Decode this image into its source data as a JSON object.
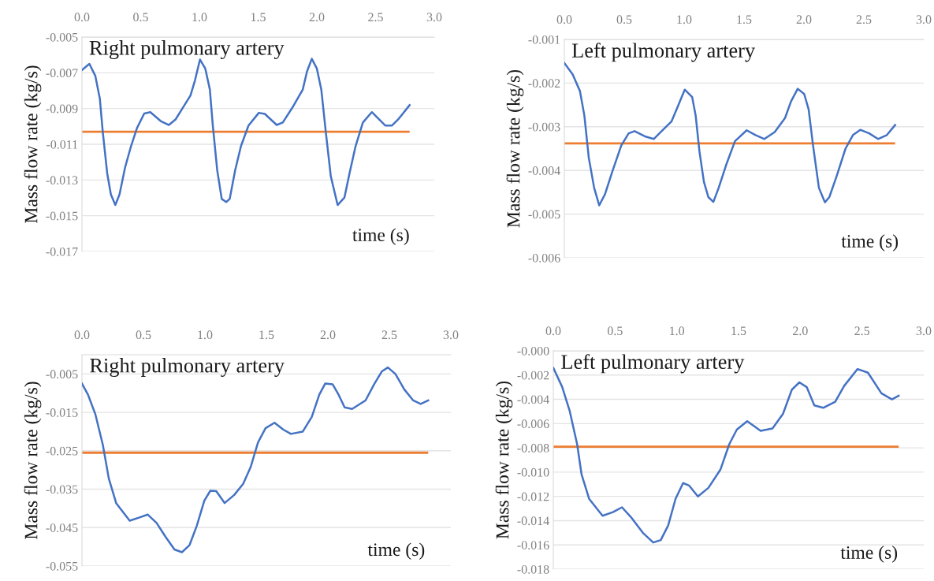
{
  "chart_data": [
    {
      "type": "line",
      "title": "Right pulmonary artery",
      "xlabel": "time (s)",
      "ylabel": "Mass flow rate (kg/s)",
      "xlim": [
        0.0,
        3.0
      ],
      "xticks": [
        {
          "value": 0,
          "label": "0.0"
        },
        0.5,
        {
          "value": 1,
          "label": "1.0"
        },
        1.5,
        {
          "value": 2,
          "label": "2.0"
        },
        2.5,
        {
          "value": 3,
          "label": "3.0"
        }
      ],
      "ylim": [
        -0.017,
        -0.005
      ],
      "yticks": [
        -0.017,
        -0.015,
        -0.013,
        -0.011,
        -0.009,
        -0.007,
        -0.005
      ],
      "grid": "y",
      "legend": false,
      "ref_lines": [
        {
          "axis": "y",
          "value": -0.0103,
          "color": "#ed7d31"
        }
      ],
      "series": [
        {
          "color": "#4472c4",
          "x": [
            0,
            0.063,
            0.114,
            0.152,
            0.177,
            0.215,
            0.246,
            0.284,
            0.32,
            0.367,
            0.418,
            0.468,
            0.53,
            0.582,
            0.67,
            0.74,
            0.797,
            0.86,
            0.924,
            0.962,
            1.005,
            1.05,
            1.089,
            1.114,
            1.152,
            1.19,
            1.228,
            1.258,
            1.304,
            1.354,
            1.418,
            1.506,
            1.557,
            1.658,
            1.71,
            1.8,
            1.88,
            1.916,
            1.957,
            2.0,
            2.038,
            2.076,
            2.119,
            2.177,
            2.235,
            2.278,
            2.33,
            2.392,
            2.468,
            2.582,
            2.64,
            2.696,
            2.79
          ],
          "values": [
            -0.00685,
            -0.0065,
            -0.00718,
            -0.00844,
            -0.0103,
            -0.01263,
            -0.0138,
            -0.0144,
            -0.0138,
            -0.0123,
            -0.0111,
            -0.0101,
            -0.00928,
            -0.0092,
            -0.0097,
            -0.00992,
            -0.00961,
            -0.00894,
            -0.00827,
            -0.00743,
            -0.00626,
            -0.00676,
            -0.00794,
            -0.00995,
            -0.01247,
            -0.01406,
            -0.01423,
            -0.01406,
            -0.01247,
            -0.0111,
            -0.00995,
            -0.00924,
            -0.0093,
            -0.00992,
            -0.00978,
            -0.00886,
            -0.00794,
            -0.00693,
            -0.00622,
            -0.00676,
            -0.00794,
            -0.0103,
            -0.0128,
            -0.0144,
            -0.01398,
            -0.01263,
            -0.0111,
            -0.00978,
            -0.0092,
            -0.00995,
            -0.00995,
            -0.00958,
            -0.00881
          ]
        }
      ]
    },
    {
      "type": "line",
      "title": "Left pulmonary artery",
      "xlabel": "time (s)",
      "ylabel": "Mass flow rate (kg/s)",
      "xlim": [
        0.0,
        3.0
      ],
      "xticks": [
        {
          "value": 0,
          "label": "0.0"
        },
        0.5,
        {
          "value": 1,
          "label": "1.0"
        },
        1.5,
        {
          "value": 2,
          "label": "2.0"
        },
        2.5,
        {
          "value": 3,
          "label": "3.0"
        }
      ],
      "ylim": [
        -0.006,
        -0.001
      ],
      "yticks": [
        -0.006,
        -0.005,
        -0.004,
        -0.003,
        -0.002,
        -0.001
      ],
      "grid": "y",
      "legend": false,
      "ref_lines": [
        {
          "axis": "y",
          "value": -0.00338,
          "color": "#ed7d31"
        }
      ],
      "series": [
        {
          "color": "#4472c4",
          "x": [
            0,
            0.069,
            0.13,
            0.167,
            0.204,
            0.249,
            0.291,
            0.34,
            0.401,
            0.475,
            0.537,
            0.586,
            0.672,
            0.746,
            0.82,
            0.894,
            0.948,
            1.005,
            1.067,
            1.096,
            1.128,
            1.165,
            1.202,
            1.244,
            1.288,
            1.35,
            1.424,
            1.522,
            1.596,
            1.67,
            1.756,
            1.842,
            1.892,
            1.948,
            2.002,
            2.039,
            2.076,
            2.125,
            2.175,
            2.212,
            2.273,
            2.347,
            2.409,
            2.47,
            2.544,
            2.618,
            2.692,
            2.761
          ],
          "values": [
            -0.00154,
            -0.0018,
            -0.00218,
            -0.00274,
            -0.00371,
            -0.0044,
            -0.0048,
            -0.00454,
            -0.00402,
            -0.00343,
            -0.00315,
            -0.0031,
            -0.00322,
            -0.00328,
            -0.00308,
            -0.00288,
            -0.00253,
            -0.00215,
            -0.00232,
            -0.00274,
            -0.00357,
            -0.00426,
            -0.00461,
            -0.00472,
            -0.0044,
            -0.00388,
            -0.00333,
            -0.00308,
            -0.00319,
            -0.00328,
            -0.00312,
            -0.0028,
            -0.00242,
            -0.00213,
            -0.00225,
            -0.0026,
            -0.00343,
            -0.0044,
            -0.00473,
            -0.00461,
            -0.00413,
            -0.0035,
            -0.00319,
            -0.00307,
            -0.00315,
            -0.00328,
            -0.00319,
            -0.00296
          ]
        }
      ]
    },
    {
      "type": "line",
      "title": "Right pulmonary artery",
      "xlabel": "time (s)",
      "ylabel": "Mass flow rate (kg/s)",
      "xlim": [
        0.0,
        3.0
      ],
      "xticks": [
        {
          "value": 0,
          "label": "0.0"
        },
        0.5,
        {
          "value": 1,
          "label": "1.0"
        },
        1.5,
        {
          "value": 2,
          "label": "2.0"
        },
        2.5,
        {
          "value": 3,
          "label": "3.0"
        }
      ],
      "ylim": [
        -0.055,
        0.0
      ],
      "yticks": [
        -0.055,
        -0.045,
        -0.035,
        -0.025,
        -0.015,
        -0.005
      ],
      "grid": "y",
      "legend": false,
      "ref_lines": [
        {
          "axis": "y",
          "value": -0.0255,
          "color": "#ed7d31"
        }
      ],
      "series": [
        {
          "color": "#4472c4",
          "x": [
            0,
            0.049,
            0.109,
            0.17,
            0.218,
            0.279,
            0.388,
            0.473,
            0.534,
            0.607,
            0.68,
            0.752,
            0.813,
            0.874,
            0.934,
            0.995,
            1.044,
            1.092,
            1.16,
            1.238,
            1.311,
            1.371,
            1.432,
            1.493,
            1.566,
            1.638,
            1.699,
            1.796,
            1.869,
            1.93,
            1.978,
            2.039,
            2.087,
            2.136,
            2.197,
            2.306,
            2.379,
            2.44,
            2.488,
            2.549,
            2.621,
            2.694,
            2.755,
            2.816
          ],
          "values": [
            -0.0075,
            -0.0104,
            -0.0155,
            -0.0235,
            -0.0322,
            -0.0387,
            -0.0432,
            -0.0423,
            -0.0416,
            -0.0438,
            -0.0474,
            -0.0507,
            -0.0514,
            -0.0496,
            -0.0445,
            -0.038,
            -0.0354,
            -0.0355,
            -0.0386,
            -0.0365,
            -0.0336,
            -0.0293,
            -0.0228,
            -0.0191,
            -0.0177,
            -0.0195,
            -0.0206,
            -0.02,
            -0.0162,
            -0.0104,
            -0.0075,
            -0.0077,
            -0.0104,
            -0.0137,
            -0.0141,
            -0.0119,
            -0.0075,
            -0.0043,
            -0.0033,
            -0.005,
            -0.009,
            -0.0119,
            -0.0128,
            -0.0119
          ]
        }
      ]
    },
    {
      "type": "line",
      "title": "Left pulmonary artery",
      "xlabel": "time (s)",
      "ylabel": "Mass flow rate (kg/s)",
      "xlim": [
        0.0,
        3.0
      ],
      "xticks": [
        {
          "value": 0,
          "label": "0.0"
        },
        0.5,
        {
          "value": 1,
          "label": "1.0"
        },
        1.5,
        {
          "value": 2,
          "label": "2.0"
        },
        2.5,
        {
          "value": 3,
          "label": "3.0"
        }
      ],
      "ylim": [
        -0.018,
        0.0
      ],
      "yticks": [
        -0.018,
        -0.016,
        -0.014,
        -0.012,
        {
          "value": -0.01,
          "label": "-0.010"
        },
        -0.008,
        -0.006,
        -0.004,
        -0.002,
        {
          "value": 0.0,
          "label": "-0.000"
        }
      ],
      "grid": "y",
      "legend": false,
      "ref_lines": [
        {
          "axis": "y",
          "value": -0.0079,
          "color": "#ed7d31"
        }
      ],
      "series": [
        {
          "color": "#4472c4",
          "x": [
            0,
            0.072,
            0.133,
            0.193,
            0.229,
            0.29,
            0.399,
            0.483,
            0.556,
            0.628,
            0.725,
            0.809,
            0.87,
            0.93,
            0.99,
            1.051,
            1.099,
            1.171,
            1.256,
            1.353,
            1.425,
            1.486,
            1.57,
            1.679,
            1.775,
            1.86,
            1.932,
            1.993,
            2.053,
            2.114,
            2.186,
            2.283,
            2.355,
            2.464,
            2.548,
            2.657,
            2.742,
            2.797
          ],
          "values": [
            -0.0014,
            -0.00298,
            -0.00497,
            -0.0077,
            -0.0102,
            -0.0122,
            -0.0136,
            -0.0133,
            -0.0129,
            -0.0137,
            -0.015,
            -0.0158,
            -0.0156,
            -0.0144,
            -0.0122,
            -0.0109,
            -0.0111,
            -0.012,
            -0.0113,
            -0.0098,
            -0.0077,
            -0.0065,
            -0.0058,
            -0.0066,
            -0.0064,
            -0.0052,
            -0.0032,
            -0.0026,
            -0.003,
            -0.0045,
            -0.0047,
            -0.0042,
            -0.0029,
            -0.0015,
            -0.0018,
            -0.0035,
            -0.004,
            -0.0037
          ]
        }
      ]
    }
  ]
}
